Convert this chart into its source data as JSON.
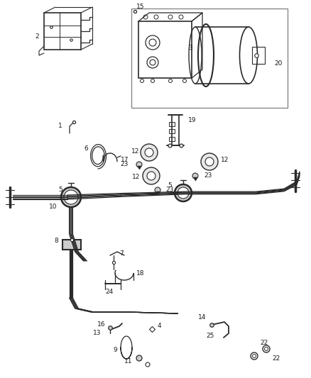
{
  "background_color": "#ffffff",
  "fig_width": 4.38,
  "fig_height": 5.33,
  "dpi": 100,
  "line_color": "#2a2a2a",
  "label_color": "#1a1a1a",
  "label_fontsize": 6.5,
  "box_color": "#bbbbbb"
}
